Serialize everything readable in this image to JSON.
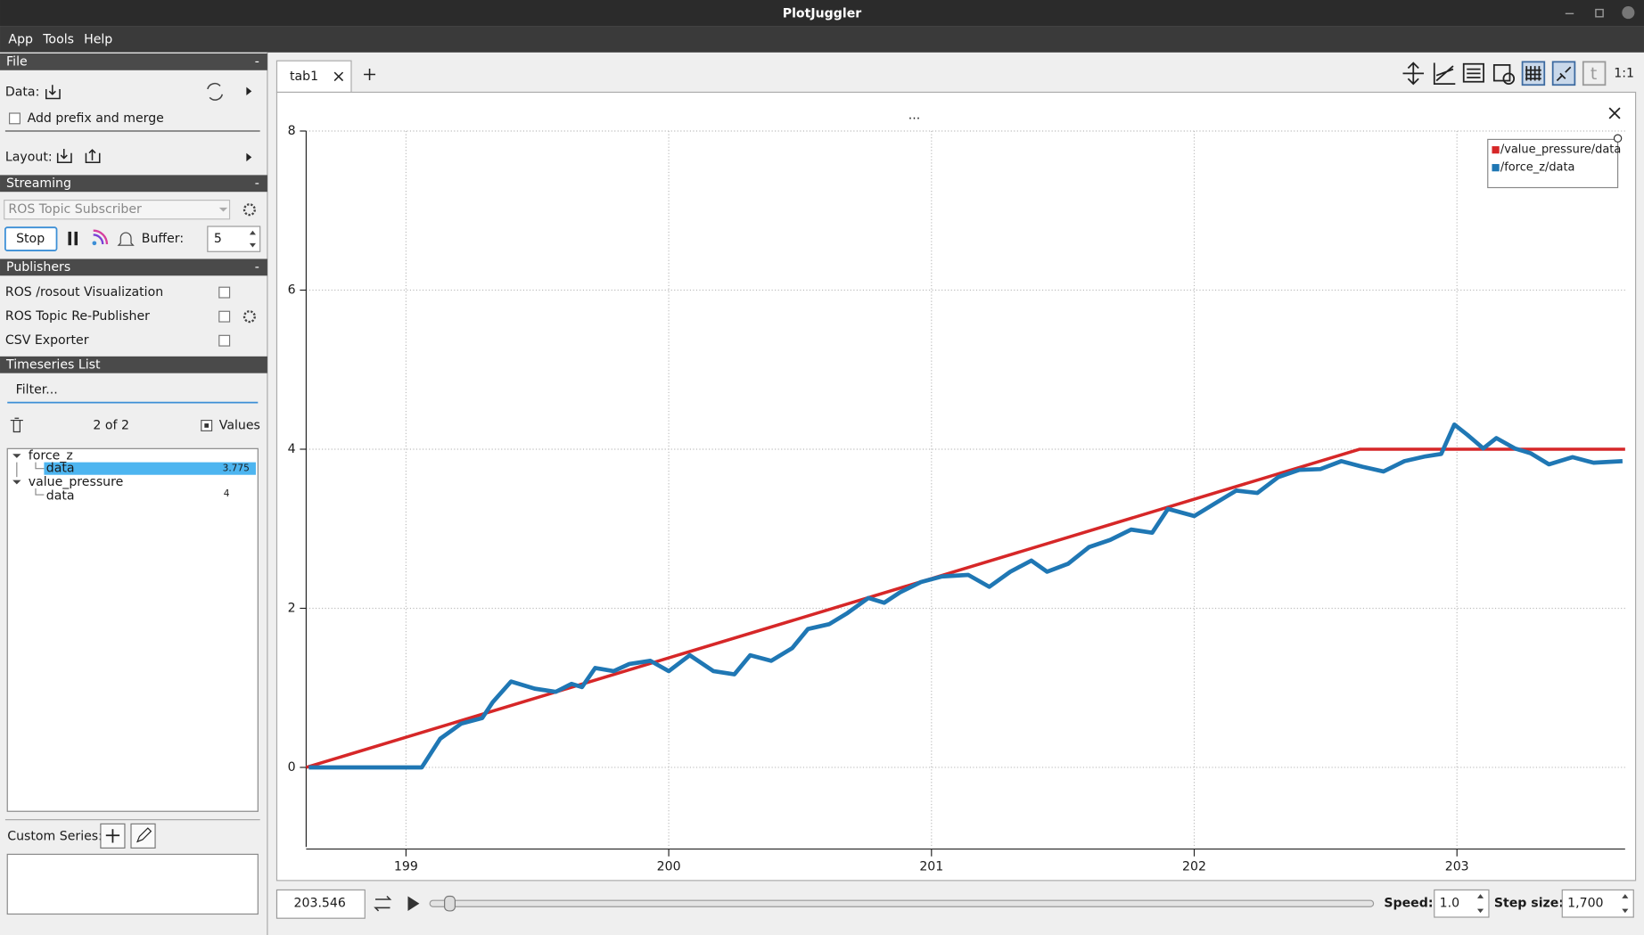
{
  "window": {
    "title": "PlotJuggler"
  },
  "menu": [
    "App",
    "Tools",
    "Help"
  ],
  "left_panel": {
    "collapse_symbol": "-",
    "file": {
      "header": "File",
      "data_label": "Data:",
      "prefix_checkbox": "Add prefix and merge",
      "layout_label": "Layout:"
    },
    "streaming": {
      "header": "Streaming",
      "source": "ROS Topic Subscriber",
      "stop_button": "Stop",
      "buffer_label": "Buffer:",
      "buffer_value": 5
    },
    "publishers": {
      "header": "Publishers",
      "items": [
        "ROS /rosout Visualization",
        "ROS Topic Re-Publisher",
        "CSV Exporter"
      ]
    },
    "timeseries": {
      "header": "Timeseries List",
      "filter_placeholder": "Filter...",
      "count": "2 of 2",
      "values_toggle": "Values",
      "tree": [
        {
          "label": "force_z",
          "children": [
            {
              "label": "data",
              "value": 3.775
            }
          ]
        },
        {
          "label": "value_pressure",
          "children": [
            {
              "label": "data",
              "value": 4
            }
          ]
        }
      ]
    },
    "custom_series_label": "Custom Series:"
  },
  "tabs": [
    "tab1"
  ],
  "toolbar_zoom_label": "1:1",
  "chart_data": {
    "type": "line",
    "title": "...",
    "xlim": [
      198.62,
      203.64
    ],
    "xticks": [
      199,
      200,
      201,
      202,
      203
    ],
    "ylim": [
      -1,
      8
    ],
    "yticks": [
      0,
      2,
      4,
      6,
      8
    ],
    "grid": true,
    "legend": "top-right",
    "series": [
      {
        "name": "/value_pressure/data",
        "color": "#d62728",
        "x": [
          198.62,
          202.63,
          203.64
        ],
        "values": [
          0,
          4,
          4
        ]
      },
      {
        "name": "/force_z/data",
        "color": "#1f77b4",
        "x": [
          198.63,
          199.06,
          199.13,
          199.21,
          199.29,
          199.33,
          199.4,
          199.49,
          199.57,
          199.63,
          199.67,
          199.72,
          199.79,
          199.85,
          199.93,
          200.0,
          200.08,
          200.17,
          200.25,
          200.31,
          200.39,
          200.47,
          200.53,
          200.61,
          200.68,
          200.76,
          200.82,
          200.88,
          200.96,
          201.04,
          201.14,
          201.22,
          201.3,
          201.38,
          201.44,
          201.52,
          201.6,
          201.68,
          201.76,
          201.84,
          201.9,
          202.0,
          202.08,
          202.16,
          202.24,
          202.32,
          202.4,
          202.48,
          202.56,
          202.64,
          202.72,
          202.8,
          202.88,
          202.94,
          202.99,
          203.04,
          203.1,
          203.15,
          203.22,
          203.28,
          203.35,
          203.44,
          203.52,
          203.63
        ],
        "values": [
          0,
          0,
          0.36,
          0.55,
          0.62,
          0.82,
          1.08,
          0.99,
          0.95,
          1.05,
          1.01,
          1.25,
          1.21,
          1.3,
          1.34,
          1.21,
          1.41,
          1.21,
          1.17,
          1.41,
          1.34,
          1.5,
          1.74,
          1.8,
          1.94,
          2.13,
          2.07,
          2.2,
          2.33,
          2.4,
          2.42,
          2.27,
          2.46,
          2.6,
          2.46,
          2.56,
          2.77,
          2.86,
          2.99,
          2.95,
          3.25,
          3.16,
          3.32,
          3.48,
          3.45,
          3.65,
          3.74,
          3.75,
          3.85,
          3.78,
          3.72,
          3.85,
          3.91,
          3.94,
          4.31,
          4.18,
          4.01,
          4.14,
          4.01,
          3.95,
          3.81,
          3.9,
          3.83,
          3.85
        ]
      }
    ]
  },
  "playback": {
    "time": 203.546,
    "speed_label": "Speed:",
    "speed": "1.0",
    "step_label": "Step size:",
    "step": "1,700"
  }
}
